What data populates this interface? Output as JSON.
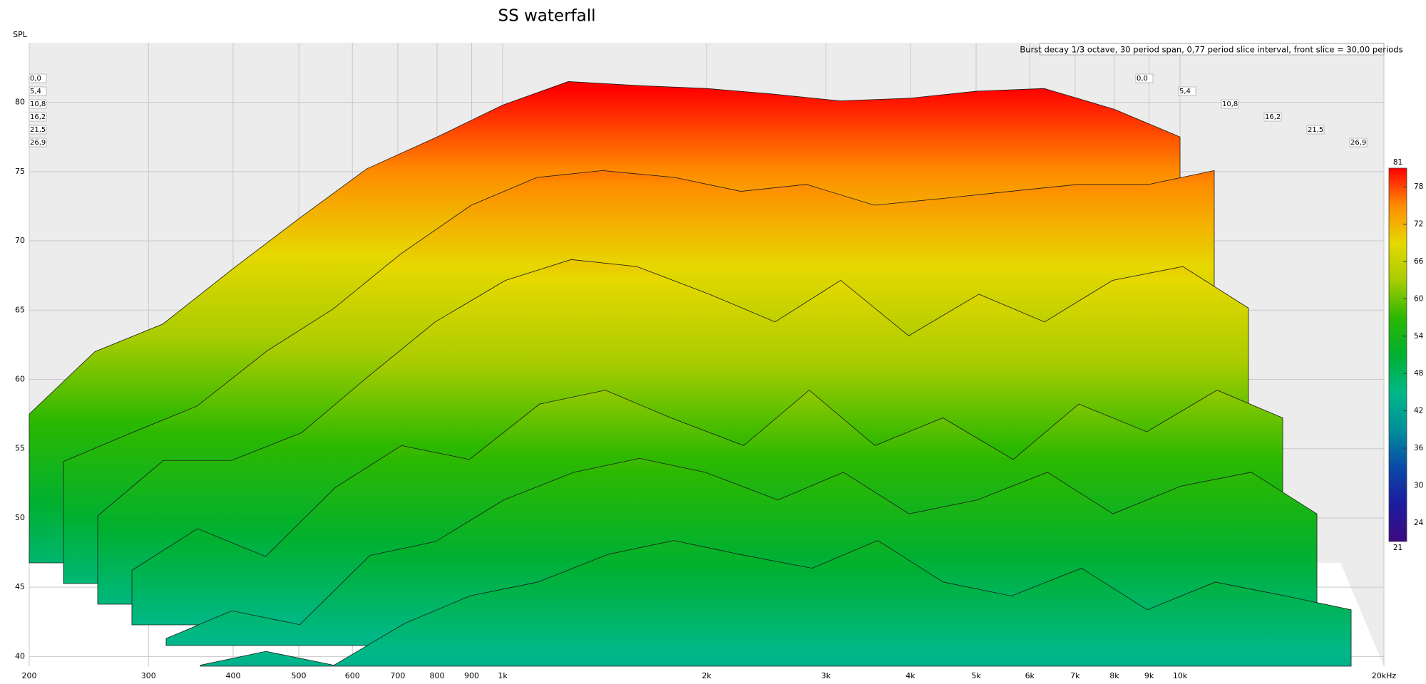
{
  "chart_data": {
    "type": "waterfall",
    "title": "SS waterfall",
    "ylabel": "SPL",
    "annotation": "Burst decay 1/3 octave, 30 period span, 0,77 period slice interval,  front slice = 30,00 periods",
    "xscale": "log",
    "xlim": [
      200,
      20000
    ],
    "xticks": [
      200,
      300,
      400,
      500,
      600,
      700,
      800,
      900,
      {
        "value": 1000,
        "label": "1k"
      },
      {
        "value": 2000,
        "label": "2k"
      },
      {
        "value": 3000,
        "label": "3k"
      },
      {
        "value": 4000,
        "label": "4k"
      },
      {
        "value": 5000,
        "label": "5k"
      },
      {
        "value": 6000,
        "label": "6k"
      },
      {
        "value": 7000,
        "label": "7k"
      },
      {
        "value": 8000,
        "label": "8k"
      },
      {
        "value": 9000,
        "label": "9k"
      },
      {
        "value": 10000,
        "label": "10k"
      },
      {
        "value": 20000,
        "label": "20kHz"
      }
    ],
    "ylim": [
      39.3,
      84.3
    ],
    "yticks": [
      40,
      45,
      50,
      55,
      60,
      65,
      70,
      75,
      80
    ],
    "grid": true,
    "x": [
      200,
      250,
      315,
      400,
      500,
      630,
      800,
      1000,
      1250,
      1600,
      2000,
      2500,
      3150,
      4000,
      5000,
      6300,
      8000,
      10000
    ],
    "series": [
      {
        "name": "0,0",
        "values": [
          57.5,
          62,
          64,
          68,
          71.6,
          75.2,
          77.5,
          79.8,
          81.5,
          81.2,
          81,
          80.6,
          80.1,
          80.3,
          80.8,
          81,
          79.5,
          77.5
        ]
      },
      {
        "name": "5,4",
        "values": [
          55,
          57,
          59,
          63,
          66,
          70,
          73.5,
          75.5,
          76,
          75.5,
          74.5,
          75,
          73.5,
          74,
          74.5,
          75,
          75,
          76
        ]
      },
      {
        "name": "10,8",
        "values": [
          52,
          56,
          56,
          58,
          62,
          66,
          69,
          70.5,
          70,
          68,
          66,
          69,
          65,
          68,
          66,
          69,
          70,
          67
        ]
      },
      {
        "name": "16,2",
        "values": [
          49,
          52,
          50,
          55,
          58,
          57,
          61,
          62,
          60,
          58,
          62,
          58,
          60,
          57,
          61,
          59,
          62,
          60
        ]
      },
      {
        "name": "21,5",
        "values": [
          45,
          47,
          46,
          51,
          52,
          55,
          57,
          58,
          57,
          55,
          57,
          54,
          55,
          57,
          54,
          56,
          57,
          54
        ]
      },
      {
        "name": "26,9",
        "values": [
          44,
          45,
          44,
          47,
          49,
          50,
          52,
          53,
          52,
          51,
          53,
          50,
          49,
          51,
          48,
          50,
          49,
          48
        ]
      }
    ],
    "colorbar": {
      "lim": [
        21,
        81
      ],
      "ticks": [
        81,
        78,
        72,
        66,
        60,
        54,
        48,
        42,
        36,
        30,
        24,
        21
      ],
      "colors": [
        "#3c0a80",
        "#1c1ca0",
        "#0a4aa8",
        "#00909a",
        "#00b888",
        "#00b030",
        "#2cb800",
        "#a8cc00",
        "#e6d800",
        "#ff8c00",
        "#ff0000"
      ]
    }
  }
}
